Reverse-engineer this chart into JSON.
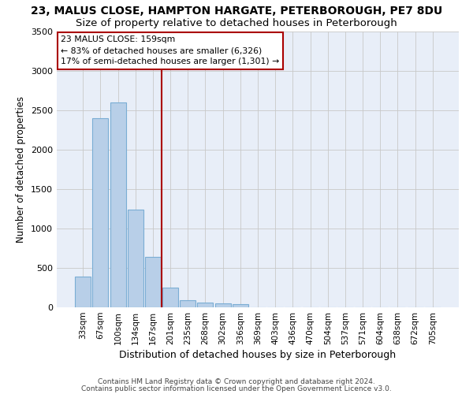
{
  "title1": "23, MALUS CLOSE, HAMPTON HARGATE, PETERBOROUGH, PE7 8DU",
  "title2": "Size of property relative to detached houses in Peterborough",
  "xlabel": "Distribution of detached houses by size in Peterborough",
  "ylabel": "Number of detached properties",
  "categories": [
    "33sqm",
    "67sqm",
    "100sqm",
    "134sqm",
    "167sqm",
    "201sqm",
    "235sqm",
    "268sqm",
    "302sqm",
    "336sqm",
    "369sqm",
    "403sqm",
    "436sqm",
    "470sqm",
    "504sqm",
    "537sqm",
    "571sqm",
    "604sqm",
    "638sqm",
    "672sqm",
    "705sqm"
  ],
  "values": [
    390,
    2400,
    2600,
    1240,
    640,
    255,
    95,
    60,
    55,
    40,
    0,
    0,
    0,
    0,
    0,
    0,
    0,
    0,
    0,
    0,
    0
  ],
  "bar_color": "#b8cfe8",
  "bar_edge_color": "#7aadd4",
  "grid_color": "#c8c8c8",
  "bg_color": "#e8eef8",
  "vline_x_idx": 4,
  "vline_color": "#aa0000",
  "annotation_text": "23 MALUS CLOSE: 159sqm\n← 83% of detached houses are smaller (6,326)\n17% of semi-detached houses are larger (1,301) →",
  "annotation_box_color": "#ffffff",
  "annotation_box_edge_color": "#aa0000",
  "ylim": [
    0,
    3500
  ],
  "yticks": [
    0,
    500,
    1000,
    1500,
    2000,
    2500,
    3000,
    3500
  ],
  "title1_fontsize": 10,
  "title2_fontsize": 9.5,
  "xlabel_fontsize": 9,
  "ylabel_fontsize": 8.5,
  "tick_fontsize": 8,
  "xtick_fontsize": 7.5,
  "footnote1": "Contains HM Land Registry data © Crown copyright and database right 2024.",
  "footnote2": "Contains public sector information licensed under the Open Government Licence v3.0.",
  "footnote_fontsize": 6.5
}
